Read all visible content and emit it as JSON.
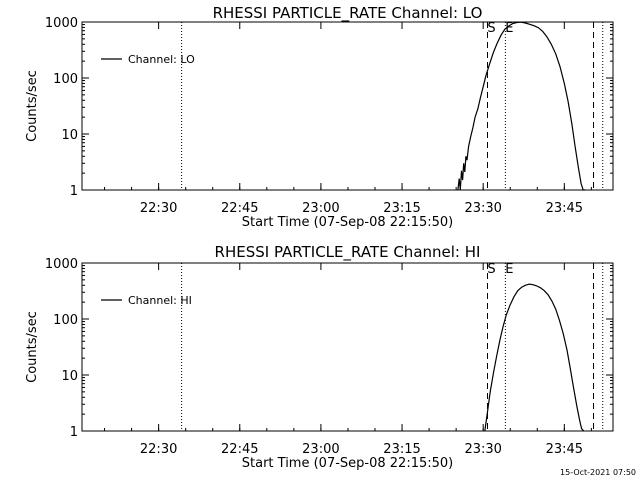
{
  "stamp": "15-Oct-2021 07:50",
  "colors": {
    "background": "#ffffff",
    "foreground": "#000000"
  },
  "chart_data": [
    {
      "type": "line",
      "title": "RHESSI PARTICLE_RATE Channel: LO",
      "xlabel": "Start Time (07-Sep-08 22:15:50)",
      "ylabel": "Counts/sec",
      "xlim": [
        "22:15:50",
        "23:54:00"
      ],
      "ylim": [
        1,
        1000
      ],
      "yscale": "log",
      "xticks": [
        "22:30",
        "22:45",
        "23:00",
        "23:15",
        "23:30",
        "23:45"
      ],
      "yticks": [
        "1",
        "10",
        "100",
        "1000"
      ],
      "legend": {
        "position": "top-left",
        "entries": [
          "Channel: LO"
        ]
      },
      "markers": [
        {
          "label": "S",
          "x": "23:30:48",
          "style": "dashed"
        },
        {
          "label": "E",
          "x": "23:34:06",
          "style": "dotted"
        }
      ],
      "vlines": [
        {
          "x": "22:34:15",
          "style": "dotted"
        },
        {
          "x": "23:50:24",
          "style": "dashed"
        },
        {
          "x": "23:52:06",
          "style": "dotted"
        }
      ],
      "series": [
        {
          "name": "Channel: LO",
          "x": [
            "23:25:20",
            "23:25:34",
            "23:25:46",
            "23:26:00",
            "23:26:12",
            "23:26:24",
            "23:26:36",
            "23:26:48",
            "23:27:00",
            "23:27:18",
            "23:27:42",
            "23:28:06",
            "23:28:30",
            "23:29:00",
            "23:29:30",
            "23:30:00",
            "23:30:30",
            "23:31:12",
            "23:31:54",
            "23:32:36",
            "23:33:18",
            "23:34:00",
            "23:34:48",
            "23:35:30",
            "23:36:12",
            "23:37:00",
            "23:37:48",
            "23:38:36",
            "23:39:24",
            "23:40:12",
            "23:41:00",
            "23:41:48",
            "23:42:36",
            "23:43:24",
            "23:44:12",
            "23:45:00",
            "23:45:42",
            "23:46:24",
            "23:47:00",
            "23:47:36",
            "23:48:06",
            "23:48:30",
            "23:48:54"
          ],
          "y": [
            1,
            1.6,
            1,
            2.2,
            1.5,
            3,
            2.1,
            4,
            3.4,
            6,
            9,
            13,
            20,
            28,
            45,
            70,
            110,
            180,
            290,
            420,
            580,
            740,
            860,
            940,
            980,
            990,
            960,
            910,
            860,
            790,
            680,
            540,
            400,
            270,
            160,
            80,
            38,
            15,
            6,
            2.5,
            1.3,
            1,
            1
          ]
        }
      ]
    },
    {
      "type": "line",
      "title": "RHESSI PARTICLE_RATE Channel: HI",
      "xlabel": "Start Time (07-Sep-08 22:15:50)",
      "ylabel": "Counts/sec",
      "xlim": [
        "22:15:50",
        "23:54:00"
      ],
      "ylim": [
        1,
        1000
      ],
      "yscale": "log",
      "xticks": [
        "22:30",
        "22:45",
        "23:00",
        "23:15",
        "23:30",
        "23:45"
      ],
      "yticks": [
        "1",
        "10",
        "100",
        "1000"
      ],
      "legend": {
        "position": "top-left",
        "entries": [
          "Channel: HI"
        ]
      },
      "markers": [
        {
          "label": "S",
          "x": "23:30:48",
          "style": "dashed"
        },
        {
          "label": "E",
          "x": "23:34:06",
          "style": "dotted"
        }
      ],
      "vlines": [
        {
          "x": "22:34:15",
          "style": "dotted"
        },
        {
          "x": "23:50:24",
          "style": "dashed"
        },
        {
          "x": "23:52:06",
          "style": "dotted"
        }
      ],
      "series": [
        {
          "name": "Channel: HI",
          "x": [
            "23:30:18",
            "23:30:48",
            "23:31:18",
            "23:31:54",
            "23:32:30",
            "23:33:06",
            "23:33:42",
            "23:34:18",
            "23:35:00",
            "23:35:42",
            "23:36:24",
            "23:37:06",
            "23:37:48",
            "23:38:30",
            "23:39:12",
            "23:39:54",
            "23:40:36",
            "23:41:18",
            "23:42:00",
            "23:42:42",
            "23:43:24",
            "23:44:06",
            "23:44:48",
            "23:45:30",
            "23:46:06",
            "23:46:42",
            "23:47:18",
            "23:47:48",
            "23:48:12",
            "23:48:36"
          ],
          "y": [
            1,
            2.2,
            5,
            11,
            22,
            42,
            75,
            120,
            180,
            250,
            320,
            370,
            400,
            420,
            410,
            390,
            360,
            320,
            270,
            210,
            150,
            95,
            55,
            28,
            13,
            6,
            2.8,
            1.6,
            1.1,
            1
          ]
        }
      ]
    }
  ]
}
